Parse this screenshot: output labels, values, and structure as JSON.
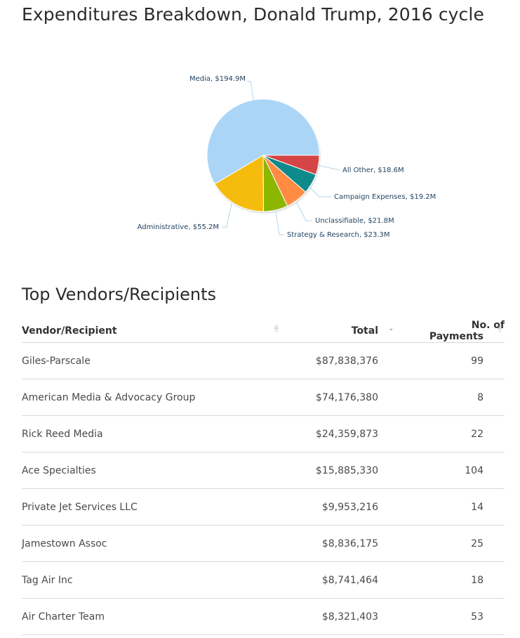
{
  "page_title": "Expenditures Breakdown, Donald Trump, 2016 cycle",
  "chart_data": {
    "type": "pie",
    "title": "",
    "slices": [
      {
        "label": "Media, $194.9M",
        "value": 194.9,
        "color": "#abd5f6"
      },
      {
        "label": "All Other, $18.6M",
        "value": 18.6,
        "color": "#d64545"
      },
      {
        "label": "Campaign Expenses, $19.2M",
        "value": 19.2,
        "color": "#0f8a8a"
      },
      {
        "label": "Unclassifiable, $21.8M",
        "value": 21.8,
        "color": "#ff8c42"
      },
      {
        "label": "Strategy & Research, $23.3M",
        "value": 23.3,
        "color": "#8db600"
      },
      {
        "label": "Administrative, $55.2M",
        "value": 55.2,
        "color": "#f5bc0e"
      }
    ]
  },
  "vendors": {
    "title": "Top Vendors/Recipients",
    "columns": {
      "vendor": "Vendor/Recipient",
      "total": "Total",
      "count": "No. of Payments"
    },
    "sort_icons": {
      "vendor": "sort-both-icon",
      "total": "sort-desc-icon",
      "count": "sort-both-icon"
    },
    "rows": [
      {
        "vendor": "Giles-Parscale",
        "total": "$87,838,376",
        "count": "99"
      },
      {
        "vendor": "American Media & Advocacy Group",
        "total": "$74,176,380",
        "count": "8"
      },
      {
        "vendor": "Rick Reed Media",
        "total": "$24,359,873",
        "count": "22"
      },
      {
        "vendor": "Ace Specialties",
        "total": "$15,885,330",
        "count": "104"
      },
      {
        "vendor": "Private Jet Services LLC",
        "total": "$9,953,216",
        "count": "14"
      },
      {
        "vendor": "Jamestown Assoc",
        "total": "$8,836,175",
        "count": "25"
      },
      {
        "vendor": "Tag Air Inc",
        "total": "$8,741,464",
        "count": "18"
      },
      {
        "vendor": "Air Charter Team",
        "total": "$8,321,403",
        "count": "53"
      }
    ]
  }
}
